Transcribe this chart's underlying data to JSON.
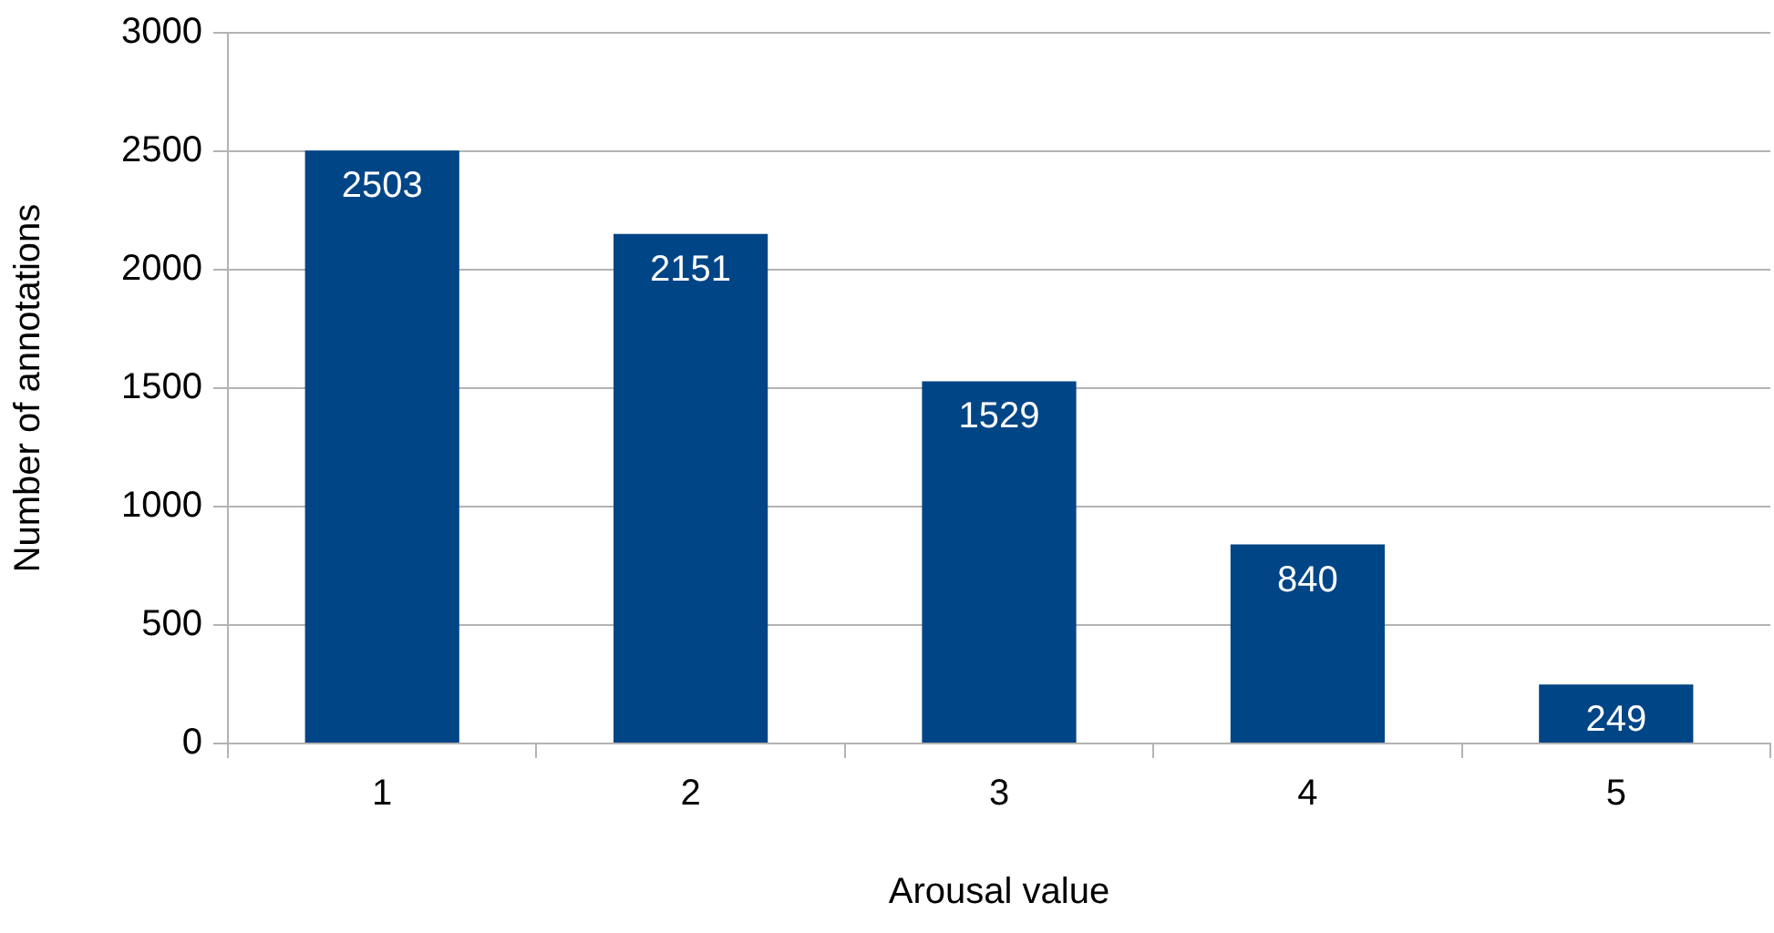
{
  "chart_data": {
    "type": "bar",
    "xlabel": "Arousal value",
    "ylabel": "Number of annotations",
    "categories": [
      "1",
      "2",
      "3",
      "4",
      "5"
    ],
    "values": [
      2503,
      2151,
      1529,
      840,
      249
    ],
    "color": "#004586",
    "ylim": [
      0,
      3000
    ],
    "yticks": [
      0,
      500,
      1000,
      1500,
      2000,
      2500,
      3000
    ],
    "grid": "y",
    "data_labels": true,
    "legend": false
  }
}
